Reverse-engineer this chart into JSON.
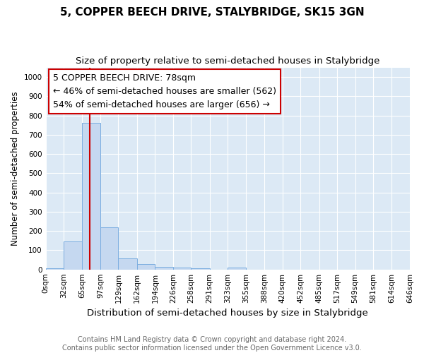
{
  "title": "5, COPPER BEECH DRIVE, STALYBRIDGE, SK15 3GN",
  "subtitle": "Size of property relative to semi-detached houses in Stalybridge",
  "xlabel": "Distribution of semi-detached houses by size in Stalybridge",
  "ylabel": "Number of semi-detached properties",
  "bin_edges": [
    0,
    32,
    65,
    97,
    129,
    162,
    194,
    226,
    258,
    291,
    323,
    355,
    388,
    420,
    452,
    485,
    517,
    549,
    581,
    614,
    646
  ],
  "bin_heights": [
    8,
    145,
    762,
    218,
    57,
    28,
    14,
    11,
    8,
    0,
    11,
    0,
    0,
    0,
    0,
    0,
    0,
    0,
    0,
    0
  ],
  "bar_color": "#c5d8f0",
  "bar_edge_color": "#7aade0",
  "property_size": 78,
  "red_line_color": "#cc0000",
  "annotation_line1": "5 COPPER BEECH DRIVE: 78sqm",
  "annotation_line2": "← 46% of semi-detached houses are smaller (562)",
  "annotation_line3": "54% of semi-detached houses are larger (656) →",
  "annotation_box_color": "#ffffff",
  "annotation_box_edge_color": "#cc0000",
  "ylim": [
    0,
    1050
  ],
  "yticks": [
    0,
    100,
    200,
    300,
    400,
    500,
    600,
    700,
    800,
    900,
    1000
  ],
  "tick_labels": [
    "0sqm",
    "32sqm",
    "65sqm",
    "97sqm",
    "129sqm",
    "162sqm",
    "194sqm",
    "226sqm",
    "258sqm",
    "291sqm",
    "323sqm",
    "355sqm",
    "388sqm",
    "420sqm",
    "452sqm",
    "485sqm",
    "517sqm",
    "549sqm",
    "581sqm",
    "614sqm",
    "646sqm"
  ],
  "footer_text": "Contains HM Land Registry data © Crown copyright and database right 2024.\nContains public sector information licensed under the Open Government Licence v3.0.",
  "fig_bg_color": "#ffffff",
  "plot_bg_color": "#dce9f5",
  "grid_color": "#ffffff",
  "title_fontsize": 11,
  "subtitle_fontsize": 9.5,
  "xlabel_fontsize": 9.5,
  "ylabel_fontsize": 8.5,
  "footer_fontsize": 7,
  "annotation_fontsize": 9,
  "tick_fontsize": 7.5
}
